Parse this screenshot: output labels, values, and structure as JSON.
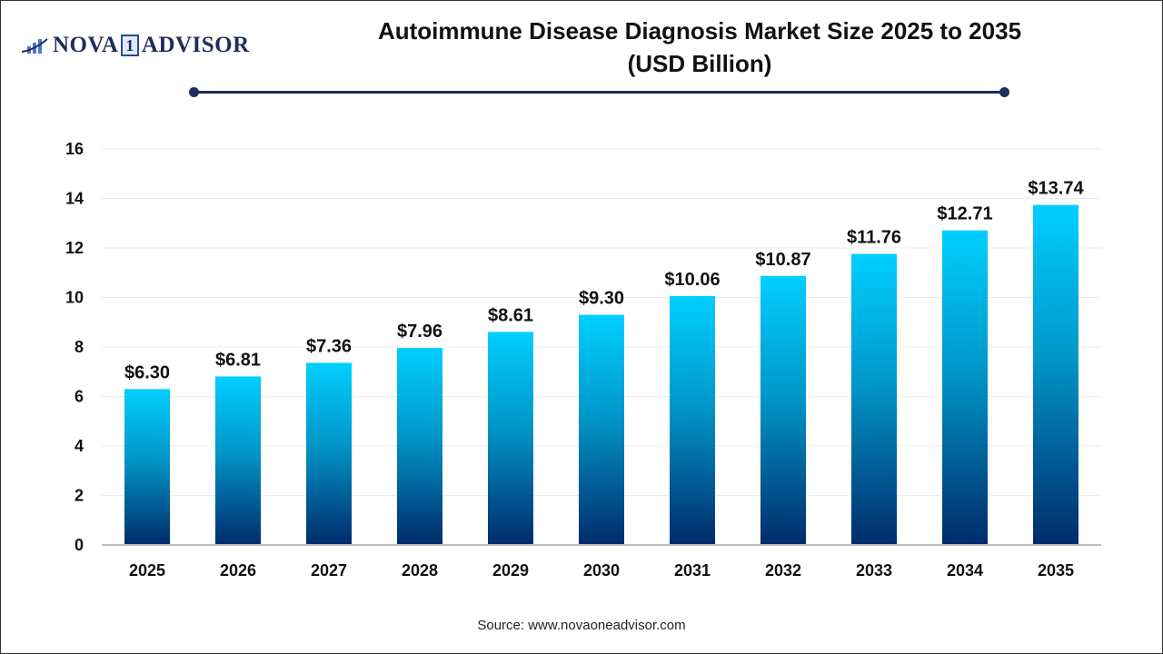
{
  "logo": {
    "text_left": "NOVA",
    "text_mid": "1",
    "text_right": "ADVISOR"
  },
  "colors": {
    "bar_top": "#00cfff",
    "bar_bottom": "#002b6b",
    "accent": "#1f2d5c"
  },
  "source": "Source: www.novaoneadvisor.com",
  "chart_data": {
    "type": "bar",
    "title": "Autoimmune Disease Diagnosis Market Size 2025 to 2035",
    "subtitle": "(USD Billion)",
    "categories": [
      "2025",
      "2026",
      "2027",
      "2028",
      "2029",
      "2030",
      "2031",
      "2032",
      "2033",
      "2034",
      "2035"
    ],
    "values": [
      6.3,
      6.81,
      7.36,
      7.96,
      8.61,
      9.3,
      10.06,
      10.87,
      11.76,
      12.71,
      13.74
    ],
    "data_labels": [
      "$6.30",
      "$6.81",
      "$7.36",
      "$7.96",
      "$8.61",
      "$9.30",
      "$10.06",
      "$10.87",
      "$11.76",
      "$12.71",
      "$13.74"
    ],
    "yticks": [
      0,
      2,
      4,
      6,
      8,
      10,
      12,
      14,
      16
    ],
    "ylim": [
      0,
      16
    ],
    "grid": true,
    "legend": "none"
  }
}
